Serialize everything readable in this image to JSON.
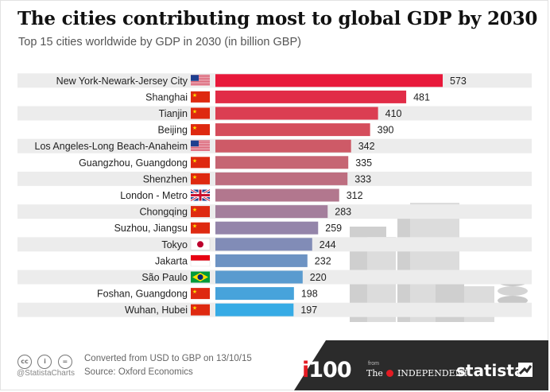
{
  "title": "The cities contributing most to global GDP by 2030",
  "subtitle": "Top 15 cities worldwide by GDP in 2030 (in billion GBP)",
  "chart_data": {
    "type": "bar",
    "orientation": "horizontal",
    "categories": [
      "New York-Newark-Jersey City",
      "Shanghai",
      "Tianjin",
      "Beijing",
      "Los Angeles-Long Beach-Anaheim",
      "Guangzhou, Guangdong",
      "Shenzhen",
      "London - Metro",
      "Chongqing",
      "Suzhou, Jiangsu",
      "Tokyo",
      "Jakarta",
      "São Paulo",
      "Foshan, Guangdong",
      "Wuhan, Hubei"
    ],
    "values": [
      573,
      481,
      410,
      390,
      342,
      335,
      333,
      312,
      283,
      259,
      244,
      232,
      220,
      198,
      197
    ],
    "flags": [
      "us",
      "cn",
      "cn",
      "cn",
      "us",
      "cn",
      "cn",
      "uk",
      "cn",
      "cn",
      "jp",
      "id",
      "br",
      "cn",
      "cn"
    ],
    "bar_colors": [
      "#e8183a",
      "#e12c47",
      "#db3e52",
      "#d54d5c",
      "#ce5a67",
      "#c66573",
      "#bd6e80",
      "#b2778e",
      "#a47e9c",
      "#9485aa",
      "#818cb7",
      "#6d93c3",
      "#5a9bcf",
      "#47a3db",
      "#36abe5"
    ],
    "xlim": [
      0,
      600
    ],
    "grid": false,
    "value_labels": true
  },
  "footer": {
    "cc_icons": [
      "cc",
      "i",
      "="
    ],
    "handle": "@StatistaCharts",
    "note": "Converted from USD to GBP on 13/10/15",
    "source": "Source: Oxford Economics",
    "partner_logo_i": "i",
    "partner_logo_rest": "100",
    "partner_from": "from",
    "independent_pre": "The",
    "independent_post": "INDEPENDENT",
    "brand": "statista"
  }
}
